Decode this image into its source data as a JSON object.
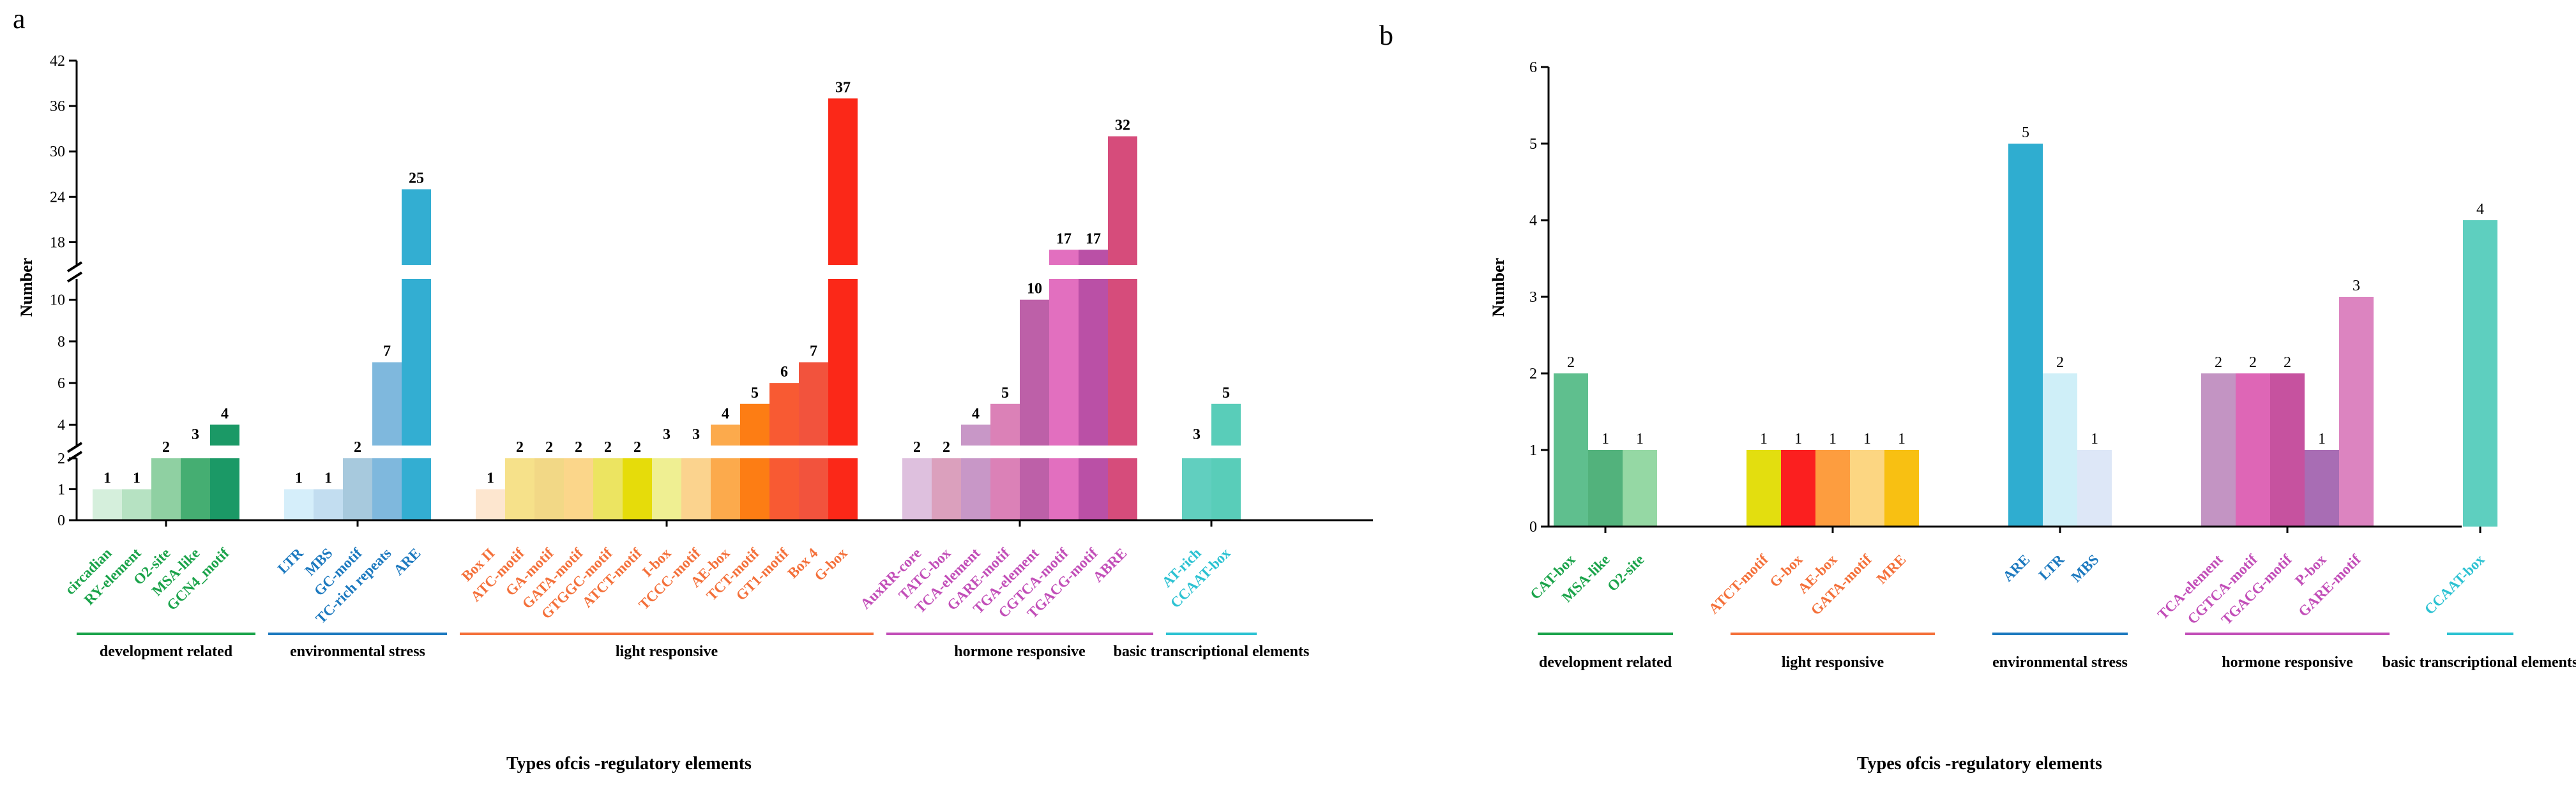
{
  "panels": [
    {
      "letter": "a",
      "ylabel": "Number",
      "xlabel": "Types ofcis -regulatory elements",
      "ticks": [
        "0",
        "1",
        "2",
        "4",
        "6",
        "8",
        "10",
        "18",
        "24",
        "30",
        "36",
        "42"
      ],
      "label_weight": "bold",
      "bar_label_weight": "bold",
      "groups": [
        {
          "name": "development related",
          "color": "#1aa34a",
          "bars": [
            {
              "label": "circadian",
              "value": 1,
              "color": "#d5efdc"
            },
            {
              "label": "RY-element",
              "value": 1,
              "color": "#b6e2c2"
            },
            {
              "label": "O2-site",
              "value": 2,
              "color": "#8fd0a2"
            },
            {
              "label": "MSA-like",
              "value": 3,
              "color": "#45ae72"
            },
            {
              "label": "GCN4_motif",
              "value": 4,
              "color": "#1b9966"
            }
          ]
        },
        {
          "name": "environmental stress",
          "color": "#1c79bf",
          "bars": [
            {
              "label": "LTR",
              "value": 1,
              "color": "#d5eefa"
            },
            {
              "label": "MBS",
              "value": 1,
              "color": "#c2ddf0"
            },
            {
              "label": "GC-motif",
              "value": 2,
              "color": "#a7c9dd"
            },
            {
              "label": "TC-rich repeats",
              "value": 7,
              "color": "#7fb8dd"
            },
            {
              "label": "ARE",
              "value": 25,
              "color": "#33aed2"
            }
          ]
        },
        {
          "name": "light responsive",
          "color": "#f4703a",
          "bars": [
            {
              "label": "Box II",
              "value": 1,
              "color": "#fde6cf"
            },
            {
              "label": "ATC-motif",
              "value": 2,
              "color": "#f6e18a"
            },
            {
              "label": "GA-motif",
              "value": 2,
              "color": "#f2d886"
            },
            {
              "label": "GATA-motif",
              "value": 2,
              "color": "#fbd68a"
            },
            {
              "label": "GTGGC-motif",
              "value": 2,
              "color": "#ece461"
            },
            {
              "label": "ATCT-motif",
              "value": 2,
              "color": "#e6dc0a"
            },
            {
              "label": "I-box",
              "value": 3,
              "color": "#efef92"
            },
            {
              "label": "TCCC-motif",
              "value": 3,
              "color": "#fbd38e"
            },
            {
              "label": "AE-box",
              "value": 4,
              "color": "#fcaa4c"
            },
            {
              "label": "TCT-motif",
              "value": 5,
              "color": "#fd7d14"
            },
            {
              "label": "GT1-motif",
              "value": 6,
              "color": "#f85a33"
            },
            {
              "label": "Box 4",
              "value": 7,
              "color": "#f2533d"
            },
            {
              "label": "G-box",
              "value": 37,
              "color": "#fb2818"
            }
          ]
        },
        {
          "name": "hormone responsive",
          "color": "#c24eb8",
          "bars": [
            {
              "label": "AuxRR-core",
              "value": 2,
              "color": "#dec0de"
            },
            {
              "label": "TATC-box",
              "value": 2,
              "color": "#dba0bd"
            },
            {
              "label": "TCA-element",
              "value": 4,
              "color": "#c897c7"
            },
            {
              "label": "GARE-motif",
              "value": 5,
              "color": "#db81b7"
            },
            {
              "label": "TGA-element",
              "value": 10,
              "color": "#bd60a8"
            },
            {
              "label": "CGTCA-motif",
              "value": 17,
              "color": "#e26fbf"
            },
            {
              "label": "TGACG-motif",
              "value": 17,
              "color": "#ba50a6"
            },
            {
              "label": "ABRE",
              "value": 32,
              "color": "#d64c7b"
            }
          ]
        },
        {
          "name": "basic transcriptional elements",
          "color": "#2cc2d2",
          "bars": [
            {
              "label": "AT-rich",
              "value": 3,
              "color": "#61cfbf"
            },
            {
              "label": "CCAAT-box",
              "value": 5,
              "color": "#59cdb9"
            }
          ]
        }
      ]
    },
    {
      "letter": "b",
      "ylabel": "Number",
      "xlabel": "Types ofcis -regulatory elements",
      "ticks": [
        "0",
        "1",
        "2",
        "3",
        "4",
        "5",
        "6"
      ],
      "label_weight": "bold",
      "bar_label_weight": "normal",
      "groups": [
        {
          "name": "development related",
          "color": "#1aa34a",
          "bars": [
            {
              "label": "CAT-box",
              "value": 2,
              "color": "#5fbf8e"
            },
            {
              "label": "MSA-like",
              "value": 1,
              "color": "#52b27c"
            },
            {
              "label": "O2-site",
              "value": 1,
              "color": "#95d8a4"
            }
          ]
        },
        {
          "name": "light responsive",
          "color": "#f4703a",
          "bars": [
            {
              "label": "ATCT-motif",
              "value": 1,
              "color": "#e3de0f"
            },
            {
              "label": "G-box",
              "value": 1,
              "color": "#fb1f1f"
            },
            {
              "label": "AE-box",
              "value": 1,
              "color": "#fd9d3f"
            },
            {
              "label": "GATA-motif",
              "value": 1,
              "color": "#fcd682"
            },
            {
              "label": "MRE",
              "value": 1,
              "color": "#f8c012"
            }
          ]
        },
        {
          "name": "environmental stress",
          "color": "#1c79bf",
          "bars": [
            {
              "label": "ARE",
              "value": 5,
              "color": "#2fadd0"
            },
            {
              "label": "LTR",
              "value": 2,
              "color": "#cfeff8"
            },
            {
              "label": "MBS",
              "value": 1,
              "color": "#dde7f7"
            }
          ]
        },
        {
          "name": "hormone responsive",
          "color": "#c24eb8",
          "bars": [
            {
              "label": "TCA-element",
              "value": 2,
              "color": "#c394c3"
            },
            {
              "label": "CGTCA-motif",
              "value": 2,
              "color": "#de66b6"
            },
            {
              "label": "TGACG-motif",
              "value": 2,
              "color": "#c6529f"
            },
            {
              "label": "P-box",
              "value": 1,
              "color": "#a86db4"
            },
            {
              "label": "GARE-motif",
              "value": 3,
              "color": "#dc84c0"
            }
          ]
        },
        {
          "name": "basic transcriptional elements",
          "color": "#2cc2d2",
          "bars": [
            {
              "label": "CCAAT-box",
              "value": 4,
              "color": "#5ecfbf"
            }
          ]
        }
      ]
    }
  ],
  "chart_data": [
    {
      "type": "bar",
      "title": "a",
      "xlabel": "Types ofcis -regulatory elements",
      "ylabel": "Number",
      "y_axis_breaks": [
        [
          2,
          3
        ],
        [
          11,
          15
        ]
      ],
      "ylim": [
        0,
        42
      ],
      "categories": [
        "circadian",
        "RY-element",
        "O2-site",
        "MSA-like",
        "GCN4_motif",
        "LTR",
        "MBS",
        "GC-motif",
        "TC-rich repeats",
        "ARE",
        "Box II",
        "ATC-motif",
        "GA-motif",
        "GATA-motif",
        "GTGGC-motif",
        "ATCT-motif",
        "I-box",
        "TCCC-motif",
        "AE-box",
        "TCT-motif",
        "GT1-motif",
        "Box 4",
        "G-box",
        "AuxRR-core",
        "TATC-box",
        "TCA-element",
        "GARE-motif",
        "TGA-element",
        "CGTCA-motif",
        "TGACG-motif",
        "ABRE",
        "AT-rich",
        "CCAAT-box"
      ],
      "values": [
        1,
        1,
        2,
        3,
        4,
        1,
        1,
        2,
        7,
        25,
        1,
        2,
        2,
        2,
        2,
        2,
        3,
        3,
        4,
        5,
        6,
        7,
        37,
        2,
        2,
        4,
        5,
        10,
        17,
        17,
        32,
        3,
        5
      ],
      "groups": [
        "development related",
        "environmental stress",
        "light responsive",
        "hormone responsive",
        "basic transcriptional elements"
      ]
    },
    {
      "type": "bar",
      "title": "b",
      "xlabel": "Types ofcis -regulatory elements",
      "ylabel": "Number",
      "ylim": [
        0,
        6
      ],
      "categories": [
        "CAT-box",
        "MSA-like",
        "O2-site",
        "ATCT-motif",
        "G-box",
        "AE-box",
        "GATA-motif",
        "MRE",
        "ARE",
        "LTR",
        "MBS",
        "TCA-element",
        "CGTCA-motif",
        "TGACG-motif",
        "P-box",
        "GARE-motif",
        "CCAAT-box"
      ],
      "values": [
        2,
        1,
        1,
        1,
        1,
        1,
        1,
        1,
        5,
        2,
        1,
        2,
        2,
        2,
        1,
        3,
        4
      ],
      "groups": [
        "development related",
        "light responsive",
        "environmental stress",
        "hormone responsive",
        "basic transcriptional elements"
      ]
    }
  ]
}
